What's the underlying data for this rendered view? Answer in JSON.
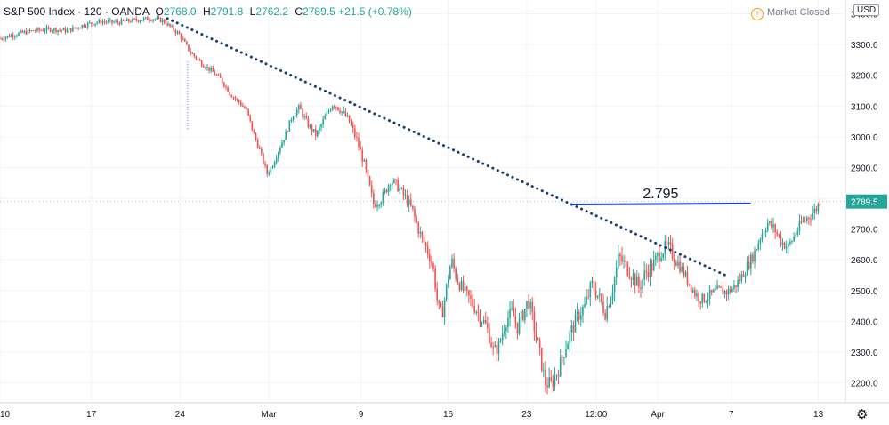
{
  "header": {
    "symbol": "S&P 500 Index · 120 · OANDA",
    "o_label": "O",
    "o_value": "2768.0",
    "h_label": "H",
    "h_value": "2791.8",
    "l_label": "L",
    "l_value": "2762.2",
    "c_label": "C",
    "c_value": "2789.5",
    "change": "+21.5 (+0.78%)"
  },
  "status": {
    "market": "Market Closed",
    "icon": "info-circle-icon"
  },
  "currency": "USD",
  "settings_icon": "gear-icon",
  "colors": {
    "up": "#26a69a",
    "down": "#ef5350",
    "trendline": "#1a3f6b",
    "level": "#1c33c9",
    "price_label_bg": "#26a69a",
    "grid": "#f0f3fa"
  },
  "chart_data": {
    "type": "candlestick",
    "y_ticks": [
      2200,
      2300,
      2400,
      2500,
      2600,
      2700,
      2800,
      2900,
      3000,
      3100,
      3200,
      3300,
      3400
    ],
    "y_tick_labels": [
      "2200.0",
      "2300.0",
      "2400.0",
      "2500.0",
      "2600.0",
      "2700.0",
      "2800.0",
      "2900.0",
      "3000.0",
      "3100.0",
      "3200.0",
      "3300.0",
      "3400.0"
    ],
    "ylim": [
      2135,
      3445
    ],
    "x_ticks": [
      {
        "label": "10",
        "t": 0.0
      },
      {
        "label": "17",
        "t": 0.108
      },
      {
        "label": "24",
        "t": 0.213
      },
      {
        "label": "Mar",
        "t": 0.318
      },
      {
        "label": "9",
        "t": 0.427
      },
      {
        "label": "16",
        "t": 0.53
      },
      {
        "label": "23",
        "t": 0.623
      },
      {
        "label": "12:00",
        "t": 0.705
      },
      {
        "label": "Apr",
        "t": 0.778
      },
      {
        "label": "7",
        "t": 0.865
      },
      {
        "label": "13",
        "t": 0.968
      }
    ],
    "price_path": [
      [
        0.0,
        3320
      ],
      [
        0.02,
        3335
      ],
      [
        0.04,
        3345
      ],
      [
        0.06,
        3350
      ],
      [
        0.08,
        3345
      ],
      [
        0.1,
        3365
      ],
      [
        0.12,
        3375
      ],
      [
        0.14,
        3372
      ],
      [
        0.16,
        3380
      ],
      [
        0.18,
        3385
      ],
      [
        0.192,
        3378
      ],
      [
        0.205,
        3350
      ],
      [
        0.213,
        3330
      ],
      [
        0.225,
        3275
      ],
      [
        0.238,
        3240
      ],
      [
        0.25,
        3215
      ],
      [
        0.262,
        3185
      ],
      [
        0.272,
        3140
      ],
      [
        0.282,
        3115
      ],
      [
        0.292,
        3085
      ],
      [
        0.3,
        3010
      ],
      [
        0.308,
        2950
      ],
      [
        0.316,
        2880
      ],
      [
        0.322,
        2905
      ],
      [
        0.33,
        2960
      ],
      [
        0.338,
        3010
      ],
      [
        0.346,
        3070
      ],
      [
        0.354,
        3095
      ],
      [
        0.364,
        3040
      ],
      [
        0.374,
        3005
      ],
      [
        0.384,
        3060
      ],
      [
        0.394,
        3110
      ],
      [
        0.402,
        3090
      ],
      [
        0.412,
        3055
      ],
      [
        0.422,
        2990
      ],
      [
        0.43,
        2920
      ],
      [
        0.436,
        2850
      ],
      [
        0.442,
        2780
      ],
      [
        0.452,
        2800
      ],
      [
        0.462,
        2860
      ],
      [
        0.47,
        2840
      ],
      [
        0.48,
        2800
      ],
      [
        0.488,
        2760
      ],
      [
        0.496,
        2690
      ],
      [
        0.504,
        2640
      ],
      [
        0.512,
        2580
      ],
      [
        0.518,
        2450
      ],
      [
        0.523,
        2420
      ],
      [
        0.528,
        2510
      ],
      [
        0.534,
        2600
      ],
      [
        0.54,
        2540
      ],
      [
        0.548,
        2500
      ],
      [
        0.556,
        2470
      ],
      [
        0.566,
        2425
      ],
      [
        0.576,
        2380
      ],
      [
        0.584,
        2300
      ],
      [
        0.59,
        2320
      ],
      [
        0.598,
        2400
      ],
      [
        0.606,
        2430
      ],
      [
        0.612,
        2380
      ],
      [
        0.618,
        2420
      ],
      [
        0.625,
        2470
      ],
      [
        0.632,
        2380
      ],
      [
        0.638,
        2300
      ],
      [
        0.645,
        2200
      ],
      [
        0.652,
        2195
      ],
      [
        0.66,
        2240
      ],
      [
        0.668,
        2310
      ],
      [
        0.676,
        2370
      ],
      [
        0.684,
        2420
      ],
      [
        0.692,
        2450
      ],
      [
        0.7,
        2520
      ],
      [
        0.708,
        2480
      ],
      [
        0.716,
        2430
      ],
      [
        0.724,
        2500
      ],
      [
        0.732,
        2610
      ],
      [
        0.74,
        2580
      ],
      [
        0.748,
        2550
      ],
      [
        0.756,
        2510
      ],
      [
        0.764,
        2560
      ],
      [
        0.772,
        2580
      ],
      [
        0.782,
        2630
      ],
      [
        0.79,
        2640
      ],
      [
        0.798,
        2610
      ],
      [
        0.806,
        2570
      ],
      [
        0.814,
        2530
      ],
      [
        0.822,
        2490
      ],
      [
        0.83,
        2470
      ],
      [
        0.84,
        2485
      ],
      [
        0.85,
        2500
      ],
      [
        0.86,
        2495
      ],
      [
        0.868,
        2510
      ],
      [
        0.876,
        2540
      ],
      [
        0.884,
        2580
      ],
      [
        0.892,
        2620
      ],
      [
        0.9,
        2680
      ],
      [
        0.908,
        2720
      ],
      [
        0.916,
        2700
      ],
      [
        0.924,
        2660
      ],
      [
        0.932,
        2640
      ],
      [
        0.94,
        2680
      ],
      [
        0.948,
        2720
      ],
      [
        0.956,
        2740
      ],
      [
        0.964,
        2760
      ],
      [
        0.97,
        2790
      ]
    ],
    "trendline": {
      "style": "dotted",
      "from": [
        0.198,
        3385
      ],
      "to": [
        0.862,
        2545
      ]
    },
    "level_line": {
      "label": "2.795",
      "from": [
        0.675,
        2780
      ],
      "to": [
        0.888,
        2783
      ]
    },
    "last_price": {
      "label": "2789.5",
      "value": 2789.5
    },
    "marker": {
      "style": "dotted-vertical",
      "t": 0.222,
      "from": 3245,
      "to": 3025
    }
  }
}
